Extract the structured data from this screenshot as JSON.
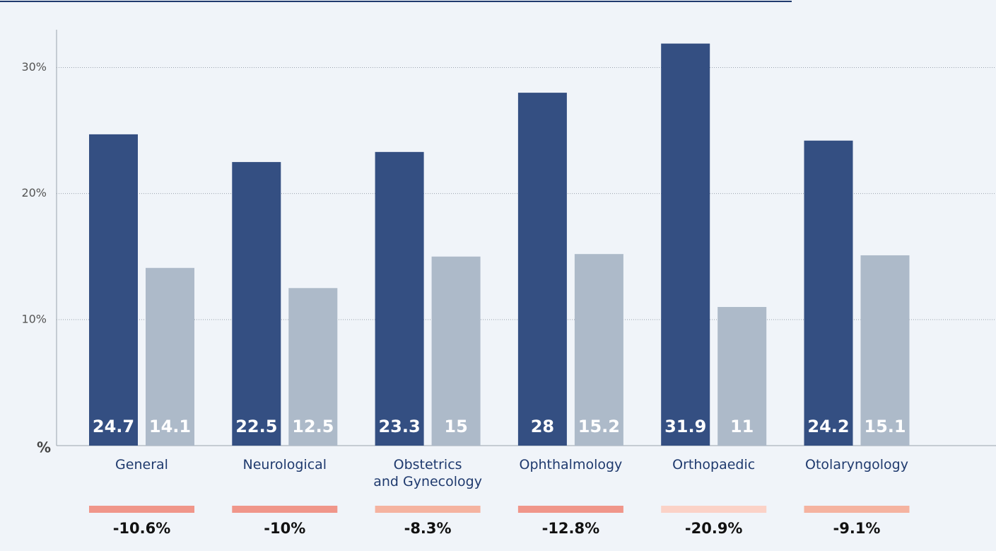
{
  "chart_data": {
    "type": "bar",
    "categories": [
      "General",
      "Neurological",
      "Obstetrics\nand Gynecology",
      "Ophthalmology",
      "Orthopaedic",
      "Otolaryngology"
    ],
    "series": [
      {
        "color": "#344f82",
        "values": [
          24.7,
          22.5,
          23.3,
          28,
          31.9,
          24.2
        ]
      },
      {
        "color": "#adbac9",
        "values": [
          14.1,
          12.5,
          15,
          15.2,
          11,
          15.1
        ]
      }
    ],
    "y_label": "%",
    "ylim": [
      0,
      33
    ],
    "yticks": [
      {
        "value": 10,
        "label": "10%"
      },
      {
        "value": 20,
        "label": "20%"
      },
      {
        "value": 30,
        "label": "30%"
      }
    ],
    "grid": true,
    "change": {
      "values": [
        -10.6,
        -10,
        -8.3,
        -12.8,
        -20.9,
        -9.1
      ],
      "value_labels": [
        "-10.6%",
        "-10%",
        "-8.3%",
        "-12.8%",
        "-20.9%",
        "-9.1%"
      ],
      "colors": [
        "#f0968a",
        "#f0968a",
        "#f5b3a0",
        "#f0968a",
        "#fbd2c7",
        "#f5b3a0"
      ]
    }
  }
}
